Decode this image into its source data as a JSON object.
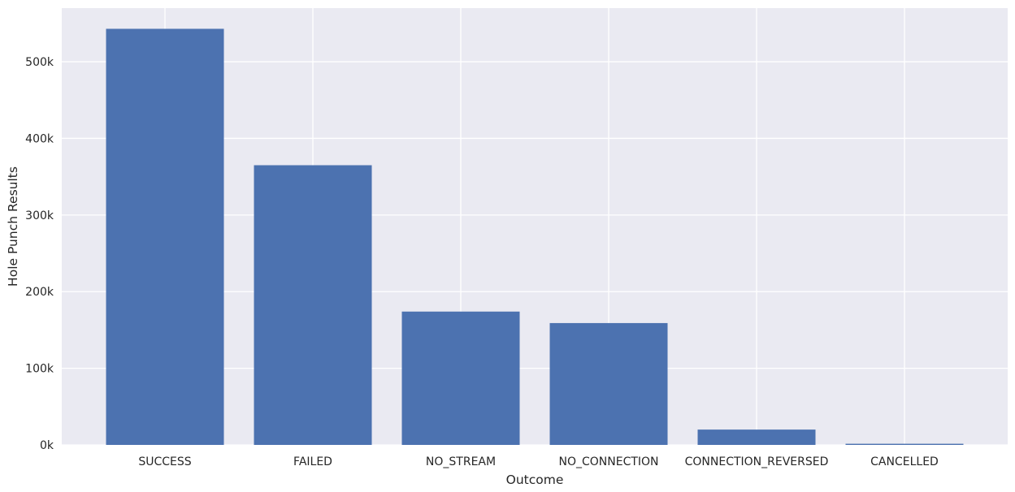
{
  "chart_data": {
    "type": "bar",
    "title": "",
    "xlabel": "Outcome",
    "ylabel": "Hole Punch Results",
    "categories": [
      "SUCCESS",
      "FAILED",
      "NO_STREAM",
      "NO_CONNECTION",
      "CONNECTION_REVERSED",
      "CANCELLED"
    ],
    "values": [
      543000,
      365000,
      174000,
      159000,
      20000,
      1500
    ],
    "ylim": [
      0,
      570000
    ],
    "yticks": [
      0,
      100000,
      200000,
      300000,
      400000,
      500000
    ],
    "ytick_labels": [
      "0k",
      "100k",
      "200k",
      "300k",
      "400k",
      "500k"
    ],
    "grid": true,
    "bar_color": "#4c72b0",
    "background_color": "#eaeaf2",
    "grid_color": "#ffffff"
  }
}
